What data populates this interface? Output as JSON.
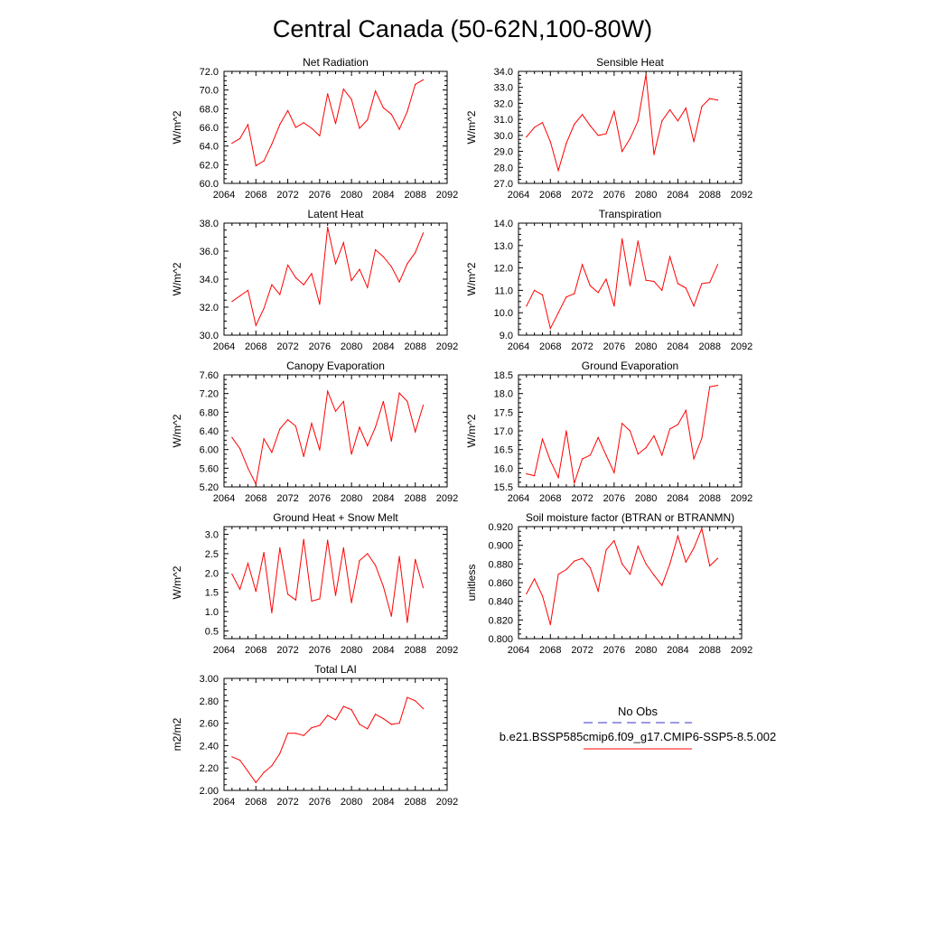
{
  "figure_title": "Central Canada (50-62N,100-80W)",
  "legend": {
    "items": [
      {
        "label": "No Obs",
        "color": "#3333cc",
        "style": "dashed"
      },
      {
        "label": "b.e21.BSSP585cmip6.f09_g17.CMIP6-SSP5-8.5.002",
        "color": "#ff0000",
        "style": "solid"
      }
    ]
  },
  "chart_data": [
    {
      "type": "line",
      "title": "Net Radiation",
      "ylabel": "W/m^2",
      "xlim": [
        2064,
        2092
      ],
      "ylim": [
        60.0,
        72.0
      ],
      "xticks": [
        "2064",
        "2068",
        "2072",
        "2076",
        "2080",
        "2084",
        "2088",
        "2092"
      ],
      "yticks": [
        "60.0",
        "62.0",
        "64.0",
        "66.0",
        "68.0",
        "70.0",
        "72.0"
      ],
      "series": [
        {
          "color": "#ff0000",
          "x": [
            2065,
            2066,
            2067,
            2068,
            2069,
            2070,
            2071,
            2072,
            2073,
            2074,
            2075,
            2076,
            2077,
            2078,
            2079,
            2080,
            2081,
            2082,
            2083,
            2084,
            2085,
            2086,
            2087,
            2088,
            2089
          ],
          "y": [
            64.3,
            64.8,
            66.3,
            61.9,
            62.4,
            64.2,
            66.3,
            67.8,
            66.0,
            66.5,
            65.9,
            65.1,
            69.6,
            66.4,
            70.1,
            69.0,
            65.9,
            66.8,
            69.9,
            68.1,
            67.4,
            65.8,
            67.7,
            70.6,
            71.1
          ]
        }
      ]
    },
    {
      "type": "line",
      "title": "Sensible Heat",
      "ylabel": "W/m^2",
      "xlim": [
        2064,
        2092
      ],
      "ylim": [
        27.0,
        34.0
      ],
      "xticks": [
        "2064",
        "2068",
        "2072",
        "2076",
        "2080",
        "2084",
        "2088",
        "2092"
      ],
      "yticks": [
        "27.0",
        "28.0",
        "29.0",
        "30.0",
        "31.0",
        "32.0",
        "33.0",
        "34.0"
      ],
      "series": [
        {
          "color": "#ff0000",
          "x": [
            2065,
            2066,
            2067,
            2068,
            2069,
            2070,
            2071,
            2072,
            2073,
            2074,
            2075,
            2076,
            2077,
            2078,
            2079,
            2080,
            2081,
            2082,
            2083,
            2084,
            2085,
            2086,
            2087,
            2088,
            2089
          ],
          "y": [
            29.9,
            30.5,
            30.8,
            29.6,
            27.8,
            29.5,
            30.7,
            31.3,
            30.6,
            30.0,
            30.1,
            31.5,
            29.0,
            29.8,
            30.9,
            33.8,
            28.8,
            30.9,
            31.6,
            30.9,
            31.7,
            29.6,
            31.8,
            32.3,
            32.2
          ]
        }
      ]
    },
    {
      "type": "line",
      "title": "Latent Heat",
      "ylabel": "W/m^2",
      "xlim": [
        2064,
        2092
      ],
      "ylim": [
        30.0,
        38.0
      ],
      "xticks": [
        "2064",
        "2068",
        "2072",
        "2076",
        "2080",
        "2084",
        "2088",
        "2092"
      ],
      "yticks": [
        "30.0",
        "32.0",
        "34.0",
        "36.0",
        "38.0"
      ],
      "series": [
        {
          "color": "#ff0000",
          "x": [
            2065,
            2066,
            2067,
            2068,
            2069,
            2070,
            2071,
            2072,
            2073,
            2074,
            2075,
            2076,
            2077,
            2078,
            2079,
            2080,
            2081,
            2082,
            2083,
            2084,
            2085,
            2086,
            2087,
            2088,
            2089
          ],
          "y": [
            32.4,
            32.8,
            33.2,
            30.7,
            31.9,
            33.6,
            32.9,
            35.0,
            34.1,
            33.6,
            34.4,
            32.2,
            37.7,
            35.1,
            36.6,
            33.9,
            34.7,
            33.4,
            36.1,
            35.6,
            34.9,
            33.8,
            35.1,
            35.9,
            37.3
          ]
        }
      ]
    },
    {
      "type": "line",
      "title": "Transpiration",
      "ylabel": "W/m^2",
      "xlim": [
        2064,
        2092
      ],
      "ylim": [
        9.0,
        14.0
      ],
      "xticks": [
        "2064",
        "2068",
        "2072",
        "2076",
        "2080",
        "2084",
        "2088",
        "2092"
      ],
      "yticks": [
        "9.0",
        "10.0",
        "11.0",
        "12.0",
        "13.0",
        "14.0"
      ],
      "series": [
        {
          "color": "#ff0000",
          "x": [
            2065,
            2066,
            2067,
            2068,
            2069,
            2070,
            2071,
            2072,
            2073,
            2074,
            2075,
            2076,
            2077,
            2078,
            2079,
            2080,
            2081,
            2082,
            2083,
            2084,
            2085,
            2086,
            2087,
            2088,
            2089
          ],
          "y": [
            10.3,
            11.0,
            10.8,
            9.3,
            10.0,
            10.7,
            10.85,
            12.15,
            11.2,
            10.9,
            11.5,
            10.3,
            13.3,
            11.2,
            13.2,
            11.45,
            11.4,
            11.0,
            12.5,
            11.3,
            11.1,
            10.3,
            11.3,
            11.35,
            12.15
          ]
        }
      ]
    },
    {
      "type": "line",
      "title": "Canopy Evaporation",
      "ylabel": "W/m^2",
      "xlim": [
        2064,
        2092
      ],
      "ylim": [
        5.2,
        7.6
      ],
      "xticks": [
        "2064",
        "2068",
        "2072",
        "2076",
        "2080",
        "2084",
        "2088",
        "2092"
      ],
      "yticks": [
        "5.20",
        "5.60",
        "6.00",
        "6.40",
        "6.80",
        "7.20",
        "7.60"
      ],
      "series": [
        {
          "color": "#ff0000",
          "x": [
            2065,
            2066,
            2067,
            2068,
            2069,
            2070,
            2071,
            2072,
            2073,
            2074,
            2075,
            2076,
            2077,
            2078,
            2079,
            2080,
            2081,
            2082,
            2083,
            2084,
            2085,
            2086,
            2087,
            2088,
            2089
          ],
          "y": [
            6.26,
            6.02,
            5.6,
            5.26,
            6.23,
            5.94,
            6.44,
            6.64,
            6.5,
            5.85,
            6.56,
            5.99,
            7.25,
            6.82,
            7.03,
            5.9,
            6.48,
            6.08,
            6.48,
            7.03,
            6.18,
            7.21,
            7.03,
            6.38,
            6.95
          ]
        }
      ]
    },
    {
      "type": "line",
      "title": "Ground Evaporation",
      "ylabel": "W/m^2",
      "xlim": [
        2064,
        2092
      ],
      "ylim": [
        15.5,
        18.5
      ],
      "xticks": [
        "2064",
        "2068",
        "2072",
        "2076",
        "2080",
        "2084",
        "2088",
        "2092"
      ],
      "yticks": [
        "15.5",
        "16.0",
        "16.5",
        "17.0",
        "17.5",
        "18.0",
        "18.5"
      ],
      "series": [
        {
          "color": "#ff0000",
          "x": [
            2065,
            2066,
            2067,
            2068,
            2069,
            2070,
            2071,
            2072,
            2073,
            2074,
            2075,
            2076,
            2077,
            2078,
            2079,
            2080,
            2081,
            2082,
            2083,
            2084,
            2085,
            2086,
            2087,
            2088,
            2089
          ],
          "y": [
            15.85,
            15.8,
            16.78,
            16.2,
            15.75,
            17.0,
            15.6,
            16.25,
            16.35,
            16.82,
            16.35,
            15.88,
            17.2,
            17.0,
            16.38,
            16.55,
            16.87,
            16.35,
            17.05,
            17.17,
            17.55,
            16.25,
            16.8,
            18.18,
            18.22
          ]
        }
      ]
    },
    {
      "type": "line",
      "title": "Ground Heat + Snow Melt",
      "ylabel": "W/m^2",
      "xlim": [
        2064,
        2092
      ],
      "ylim": [
        0.3,
        3.2
      ],
      "xticks": [
        "2064",
        "2068",
        "2072",
        "2076",
        "2080",
        "2084",
        "2088",
        "2092"
      ],
      "yticks": [
        "0.5",
        "1.0",
        "1.5",
        "2.0",
        "2.5",
        "3.0"
      ],
      "series": [
        {
          "color": "#ff0000",
          "x": [
            2065,
            2066,
            2067,
            2068,
            2069,
            2070,
            2071,
            2072,
            2073,
            2074,
            2075,
            2076,
            2077,
            2078,
            2079,
            2080,
            2081,
            2082,
            2083,
            2084,
            2085,
            2086,
            2087,
            2088,
            2089
          ],
          "y": [
            1.97,
            1.58,
            2.25,
            1.52,
            2.53,
            0.97,
            2.65,
            1.45,
            1.3,
            2.87,
            1.27,
            1.33,
            2.85,
            1.42,
            2.65,
            1.23,
            2.32,
            2.5,
            2.2,
            1.65,
            0.88,
            2.43,
            0.72,
            2.35,
            1.62
          ]
        }
      ]
    },
    {
      "type": "line",
      "title": "Soil moisture factor (BTRAN or BTRANMN)",
      "ylabel": "unitless",
      "xlim": [
        2064,
        2092
      ],
      "ylim": [
        0.8,
        0.92
      ],
      "xticks": [
        "2064",
        "2068",
        "2072",
        "2076",
        "2080",
        "2084",
        "2088",
        "2092"
      ],
      "yticks": [
        "0.800",
        "0.820",
        "0.840",
        "0.860",
        "0.880",
        "0.900",
        "0.920"
      ],
      "series": [
        {
          "color": "#ff0000",
          "x": [
            2065,
            2066,
            2067,
            2068,
            2069,
            2070,
            2071,
            2072,
            2073,
            2074,
            2075,
            2076,
            2077,
            2078,
            2079,
            2080,
            2081,
            2082,
            2083,
            2084,
            2085,
            2086,
            2087,
            2088,
            2089
          ],
          "y": [
            0.848,
            0.864,
            0.846,
            0.815,
            0.869,
            0.874,
            0.883,
            0.886,
            0.876,
            0.851,
            0.895,
            0.905,
            0.88,
            0.869,
            0.899,
            0.88,
            0.868,
            0.857,
            0.88,
            0.91,
            0.882,
            0.897,
            0.918,
            0.878,
            0.886
          ]
        }
      ]
    },
    {
      "type": "line",
      "title": "Total LAI",
      "ylabel": "m2/m2",
      "xlim": [
        2064,
        2092
      ],
      "ylim": [
        2.0,
        3.0
      ],
      "xticks": [
        "2064",
        "2068",
        "2072",
        "2076",
        "2080",
        "2084",
        "2088",
        "2092"
      ],
      "yticks": [
        "2.00",
        "2.20",
        "2.40",
        "2.60",
        "2.80",
        "3.00"
      ],
      "series": [
        {
          "color": "#ff0000",
          "x": [
            2065,
            2066,
            2067,
            2068,
            2069,
            2070,
            2071,
            2072,
            2073,
            2074,
            2075,
            2076,
            2077,
            2078,
            2079,
            2080,
            2081,
            2082,
            2083,
            2084,
            2085,
            2086,
            2087,
            2088,
            2089
          ],
          "y": [
            2.3,
            2.27,
            2.17,
            2.07,
            2.16,
            2.22,
            2.33,
            2.51,
            2.51,
            2.49,
            2.56,
            2.58,
            2.67,
            2.63,
            2.75,
            2.72,
            2.59,
            2.55,
            2.68,
            2.64,
            2.59,
            2.6,
            2.83,
            2.8,
            2.73
          ]
        }
      ]
    }
  ]
}
